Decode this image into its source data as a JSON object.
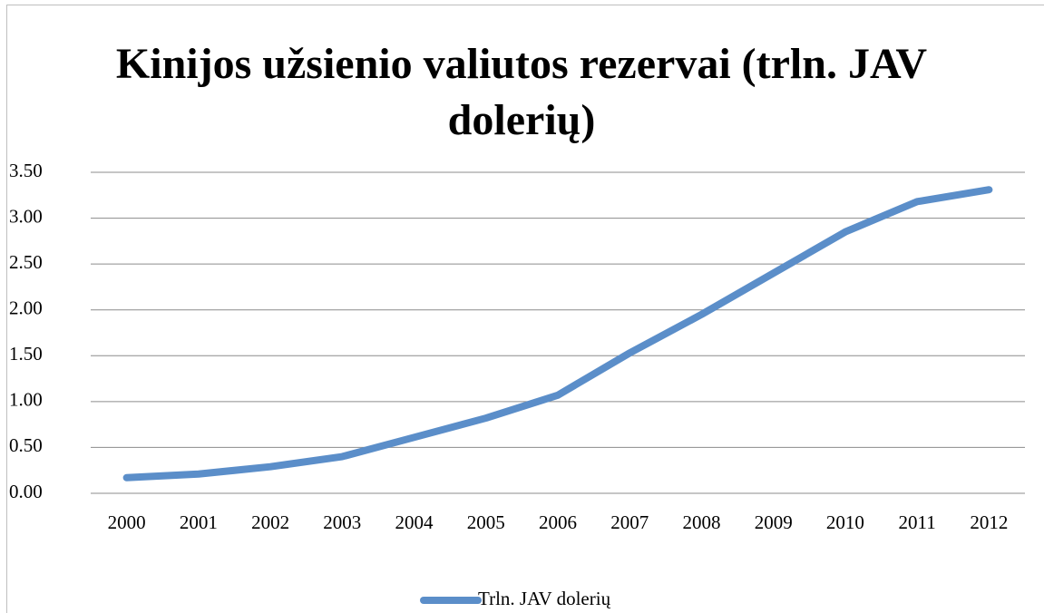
{
  "chart_data": {
    "type": "line",
    "title": "Kinijos užsienio valiutos rezervai (trln. JAV dolerių)",
    "categories": [
      "2000",
      "2001",
      "2002",
      "2003",
      "2004",
      "2005",
      "2006",
      "2007",
      "2008",
      "2009",
      "2010",
      "2011",
      "2012"
    ],
    "series": [
      {
        "name": "Trln. JAV dolerių",
        "color": "#5b8ec9",
        "values": [
          0.17,
          0.21,
          0.29,
          0.4,
          0.61,
          0.82,
          1.07,
          1.53,
          1.95,
          2.4,
          2.85,
          3.18,
          3.31
        ]
      }
    ],
    "ylim": [
      0,
      3.5
    ],
    "yticks": [
      {
        "value": 0,
        "label": "0.00"
      },
      {
        "value": 0.5,
        "label": "0.50"
      },
      {
        "value": 1,
        "label": "1.00"
      },
      {
        "value": 1.5,
        "label": "1.50"
      },
      {
        "value": 2,
        "label": "2.00"
      },
      {
        "value": 2.5,
        "label": "2.50"
      },
      {
        "value": 3,
        "label": "3.00"
      },
      {
        "value": 3.5,
        "label": "3.50"
      }
    ],
    "grid": true,
    "legend": "bottom"
  }
}
